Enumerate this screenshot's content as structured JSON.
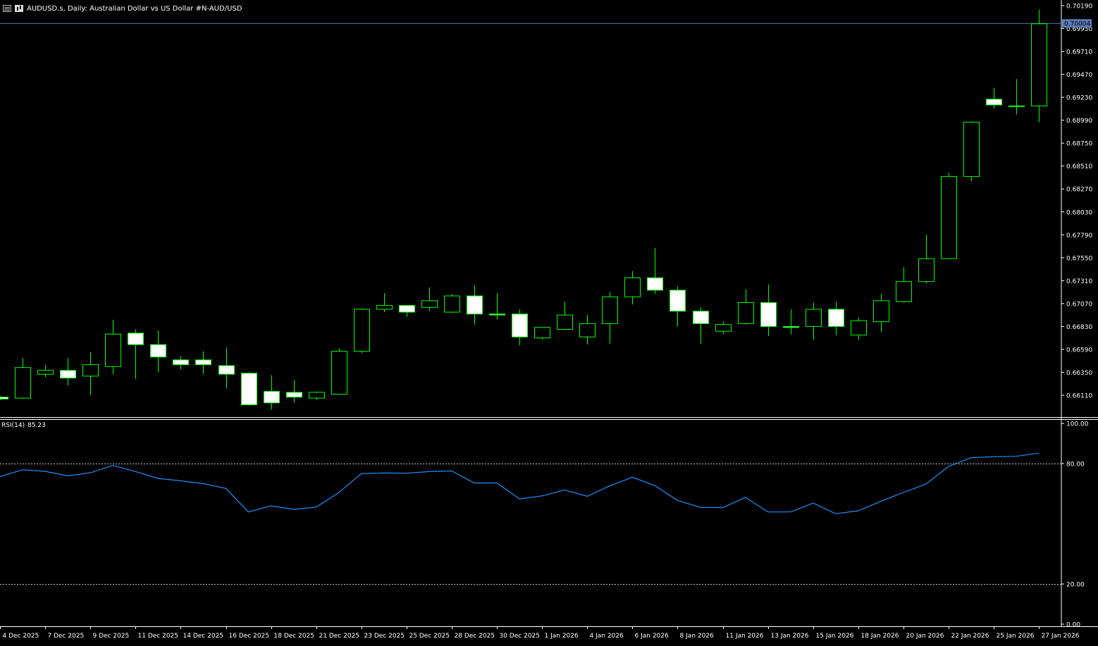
{
  "header": {
    "title": "AUDUSD.s, Daily:  Australian Dollar vs US Dollar #N-AUD/USD",
    "icons": [
      "list-icon",
      "chart-icon"
    ]
  },
  "colors": {
    "background": "#000000",
    "bull_candle": "#00ff00",
    "bear_fill": "#ffffff",
    "rsi_line": "#1e90ff",
    "price_line": "#5b7ab5",
    "axis_text": "#ffffff",
    "label_bg": "#5b7ab5"
  },
  "chart_data": [
    {
      "type": "candlestick",
      "symbol": "AUDUSD.s",
      "timeframe": "Daily",
      "ylim": [
        0.6594,
        0.7022
      ],
      "y_ticks": [
        "0.70190",
        "0.69950",
        "0.69710",
        "0.69470",
        "0.69230",
        "0.68990",
        "0.68750",
        "0.68510",
        "0.68270",
        "0.68030",
        "0.67790",
        "0.67550",
        "0.67310",
        "0.67070",
        "0.66830",
        "0.66590",
        "0.66350",
        "0.66110"
      ],
      "current_price": 0.70004,
      "current_price_label": "0.70004",
      "x_ticks": [
        "4 Dec 2025",
        "7 Dec 2025",
        "9 Dec 2025",
        "11 Dec 2025",
        "14 Dec 2025",
        "16 Dec 2025",
        "18 Dec 2025",
        "21 Dec 2025",
        "23 Dec 2025",
        "25 Dec 2025",
        "28 Dec 2025",
        "30 Dec 2025",
        "1 Jan 2026",
        "4 Jan 2026",
        "6 Jan 2026",
        "8 Jan 2026",
        "11 Jan 2026",
        "13 Jan 2026",
        "15 Jan 2026",
        "18 Jan 2026",
        "20 Jan 2026",
        "22 Jan 2026",
        "25 Jan 2026",
        "27 Jan 2026"
      ],
      "candles": [
        {
          "o": 0.6609,
          "h": 0.661,
          "l": 0.6606,
          "c": 0.6607
        },
        {
          "o": 0.6608,
          "h": 0.665,
          "l": 0.6607,
          "c": 0.664
        },
        {
          "o": 0.6633,
          "h": 0.6643,
          "l": 0.663,
          "c": 0.6637
        },
        {
          "o": 0.6637,
          "h": 0.665,
          "l": 0.6621,
          "c": 0.6629
        },
        {
          "o": 0.6631,
          "h": 0.6656,
          "l": 0.6611,
          "c": 0.6643
        },
        {
          "o": 0.6641,
          "h": 0.669,
          "l": 0.6633,
          "c": 0.6675
        },
        {
          "o": 0.6676,
          "h": 0.668,
          "l": 0.6628,
          "c": 0.6664
        },
        {
          "o": 0.6664,
          "h": 0.6679,
          "l": 0.6635,
          "c": 0.6651
        },
        {
          "o": 0.6648,
          "h": 0.6652,
          "l": 0.6638,
          "c": 0.6643
        },
        {
          "o": 0.6648,
          "h": 0.6657,
          "l": 0.6633,
          "c": 0.6643
        },
        {
          "o": 0.6642,
          "h": 0.6661,
          "l": 0.6618,
          "c": 0.6633
        },
        {
          "o": 0.6634,
          "h": 0.6635,
          "l": 0.66,
          "c": 0.6601
        },
        {
          "o": 0.6615,
          "h": 0.6632,
          "l": 0.6596,
          "c": 0.6603
        },
        {
          "o": 0.6614,
          "h": 0.6627,
          "l": 0.6603,
          "c": 0.6609
        },
        {
          "o": 0.6608,
          "h": 0.6615,
          "l": 0.6606,
          "c": 0.6614
        },
        {
          "o": 0.6612,
          "h": 0.666,
          "l": 0.6612,
          "c": 0.6657
        },
        {
          "o": 0.6657,
          "h": 0.6702,
          "l": 0.6655,
          "c": 0.6701
        },
        {
          "o": 0.6701,
          "h": 0.6718,
          "l": 0.6698,
          "c": 0.6705
        },
        {
          "o": 0.6705,
          "h": 0.6705,
          "l": 0.6693,
          "c": 0.6698
        },
        {
          "o": 0.6703,
          "h": 0.6724,
          "l": 0.6699,
          "c": 0.671
        },
        {
          "o": 0.6698,
          "h": 0.6717,
          "l": 0.6697,
          "c": 0.6715
        },
        {
          "o": 0.6715,
          "h": 0.6726,
          "l": 0.6685,
          "c": 0.6696
        },
        {
          "o": 0.6696,
          "h": 0.6718,
          "l": 0.669,
          "c": 0.6695
        },
        {
          "o": 0.6696,
          "h": 0.6701,
          "l": 0.6663,
          "c": 0.6672
        },
        {
          "o": 0.6671,
          "h": 0.6682,
          "l": 0.6669,
          "c": 0.6682
        },
        {
          "o": 0.668,
          "h": 0.6709,
          "l": 0.6679,
          "c": 0.6695
        },
        {
          "o": 0.6672,
          "h": 0.6695,
          "l": 0.6664,
          "c": 0.6686
        },
        {
          "o": 0.6686,
          "h": 0.6719,
          "l": 0.6665,
          "c": 0.6714
        },
        {
          "o": 0.6714,
          "h": 0.6741,
          "l": 0.6706,
          "c": 0.6734
        },
        {
          "o": 0.6734,
          "h": 0.6765,
          "l": 0.6717,
          "c": 0.6721
        },
        {
          "o": 0.6721,
          "h": 0.6725,
          "l": 0.6683,
          "c": 0.6699
        },
        {
          "o": 0.6699,
          "h": 0.6703,
          "l": 0.6665,
          "c": 0.6686
        },
        {
          "o": 0.6678,
          "h": 0.6688,
          "l": 0.6675,
          "c": 0.6685
        },
        {
          "o": 0.6686,
          "h": 0.6722,
          "l": 0.6685,
          "c": 0.6708
        },
        {
          "o": 0.6708,
          "h": 0.6727,
          "l": 0.6673,
          "c": 0.6683
        },
        {
          "o": 0.6683,
          "h": 0.6701,
          "l": 0.6675,
          "c": 0.6682
        },
        {
          "o": 0.6683,
          "h": 0.6708,
          "l": 0.6669,
          "c": 0.6701
        },
        {
          "o": 0.6701,
          "h": 0.6709,
          "l": 0.6674,
          "c": 0.6683
        },
        {
          "o": 0.6674,
          "h": 0.6692,
          "l": 0.6669,
          "c": 0.6689
        },
        {
          "o": 0.6688,
          "h": 0.6717,
          "l": 0.6677,
          "c": 0.671
        },
        {
          "o": 0.6709,
          "h": 0.6745,
          "l": 0.6708,
          "c": 0.673
        },
        {
          "o": 0.673,
          "h": 0.6779,
          "l": 0.6728,
          "c": 0.6754
        },
        {
          "o": 0.6754,
          "h": 0.6844,
          "l": 0.6754,
          "c": 0.684
        },
        {
          "o": 0.684,
          "h": 0.6898,
          "l": 0.6835,
          "c": 0.6897
        },
        {
          "o": 0.6921,
          "h": 0.6933,
          "l": 0.6911,
          "c": 0.6915
        },
        {
          "o": 0.6914,
          "h": 0.6942,
          "l": 0.6905,
          "c": 0.6914
        },
        {
          "o": 0.6914,
          "h": 0.7015,
          "l": 0.6897,
          "c": 0.7
        }
      ]
    },
    {
      "type": "line",
      "name": "RSI(14)",
      "label": "RSI(14) 85.23",
      "value_label": "85.23",
      "ylim": [
        0,
        100
      ],
      "y_ticks": [
        "100.00",
        "80.00",
        "20.00",
        "0.00"
      ],
      "levels": [
        80,
        20
      ],
      "values": [
        73.5,
        76.9,
        76.1,
        73.9,
        75.4,
        79.1,
        76.0,
        72.6,
        71.4,
        70.0,
        67.6,
        55.9,
        58.9,
        57.2,
        58.3,
        65.5,
        75.0,
        75.3,
        75.2,
        76.0,
        76.3,
        70.3,
        70.3,
        62.4,
        63.9,
        66.8,
        63.7,
        68.9,
        73.2,
        69.0,
        61.6,
        58.2,
        58.0,
        63.2,
        55.9,
        55.9,
        60.3,
        55.0,
        56.5,
        61.2,
        65.6,
        69.8,
        78.6,
        82.9,
        83.4,
        83.6,
        85.2
      ]
    }
  ]
}
